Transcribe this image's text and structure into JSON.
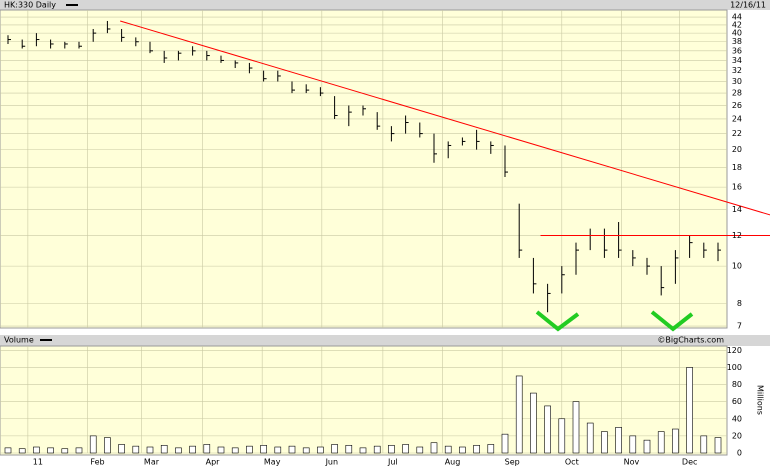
{
  "chart_data": [
    {
      "type": "ohlc",
      "title": "HK:330 Daily",
      "date": "12/16/11",
      "log_scale": true,
      "grid": true,
      "color": "#000000",
      "ylim": [
        6.92,
        45.9
      ],
      "yticks": [
        7,
        8,
        10,
        12,
        14,
        16,
        18,
        20,
        22,
        24,
        26,
        28,
        30,
        32,
        34,
        36,
        38,
        40,
        42,
        44
      ],
      "high": [
        39.5,
        38.5,
        40,
        38.5,
        38,
        38,
        41,
        43,
        41,
        39,
        38,
        36,
        36,
        37,
        36,
        35,
        34,
        33.5,
        32,
        32,
        30,
        29.5,
        29,
        27.5,
        26,
        26,
        25,
        23,
        24.5,
        23.5,
        22,
        21,
        21.5,
        22.5,
        21,
        20.5,
        14.5,
        10.5,
        9,
        10,
        11.5,
        12.5,
        12.5,
        13,
        11,
        10.5,
        10,
        11,
        12,
        11.5,
        11.5
      ],
      "low": [
        37.5,
        36.5,
        37,
        36.5,
        36.5,
        36.5,
        38,
        40,
        38,
        37,
        35.5,
        33.5,
        34,
        35,
        34,
        33.5,
        32.5,
        31.5,
        30,
        30,
        28,
        28,
        27.5,
        24,
        23,
        24.5,
        22.5,
        21,
        22,
        21.5,
        18.5,
        19,
        20.5,
        20,
        19.5,
        17,
        10.5,
        8.5,
        7.6,
        8.5,
        9.5,
        11,
        10.5,
        10.5,
        10,
        9.5,
        8.4,
        9,
        10.5,
        10.5,
        10.3
      ],
      "close": [
        38.5,
        37,
        38.5,
        37.5,
        37.5,
        37,
        40,
        41,
        39,
        38,
        36,
        34.5,
        35.5,
        36,
        35,
        34,
        33.5,
        32.5,
        30.5,
        31,
        28.5,
        28.5,
        28,
        24.5,
        25,
        25.5,
        23,
        22,
        23.5,
        22,
        19.5,
        20.5,
        21,
        21,
        20.5,
        17.5,
        11,
        9,
        8.5,
        9.5,
        11,
        12,
        11,
        11,
        10.5,
        10,
        8.8,
        10.5,
        11.5,
        11,
        11
      ],
      "trendlines": [
        {
          "color": "#ff0000",
          "x": [
            7.9,
            53.7
          ],
          "y": [
            43,
            13.55
          ]
        },
        {
          "color": "#ff0000",
          "x": [
            37.5,
            53.7
          ],
          "y": [
            12,
            12
          ]
        }
      ]
    },
    {
      "type": "bar",
      "title": "Volume",
      "credit": "©BigCharts.com",
      "ylabel": "Millions",
      "grid": true,
      "color": "#000000",
      "ylim": [
        0,
        125
      ],
      "yticks": [
        0,
        20,
        40,
        60,
        80,
        100,
        120
      ],
      "xticks": [
        {
          "value": 1.4,
          "label": "11"
        },
        {
          "value": 5.6,
          "label": "Feb"
        },
        {
          "value": 9.4,
          "label": "Mar"
        },
        {
          "value": 13.7,
          "label": "Apr"
        },
        {
          "value": 17.9,
          "label": "May"
        },
        {
          "value": 22.1,
          "label": "Jun"
        },
        {
          "value": 26.4,
          "label": "Jul"
        },
        {
          "value": 30.6,
          "label": "Aug"
        },
        {
          "value": 34.8,
          "label": "Sep"
        },
        {
          "value": 39,
          "label": "Oct"
        },
        {
          "value": 43.2,
          "label": "Nov"
        },
        {
          "value": 47.3,
          "label": "Dec"
        }
      ],
      "values": [
        6,
        5,
        7,
        6,
        5,
        6,
        20,
        18,
        10,
        8,
        7,
        9,
        6,
        8,
        10,
        7,
        6,
        8,
        9,
        7,
        8,
        6,
        7,
        10,
        9,
        6,
        8,
        9,
        10,
        7,
        12,
        8,
        7,
        9,
        10,
        22,
        90,
        70,
        55,
        40,
        60,
        35,
        25,
        30,
        20,
        15,
        25,
        28,
        100,
        20,
        18
      ]
    }
  ]
}
